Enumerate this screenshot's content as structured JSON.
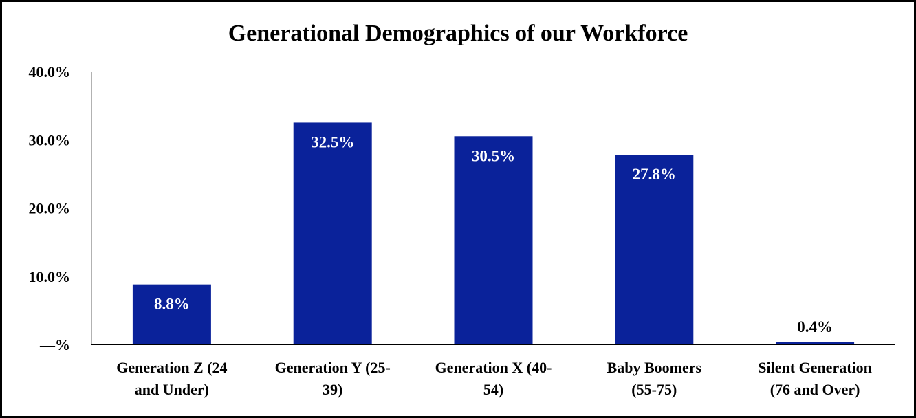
{
  "chart_data": {
    "type": "bar",
    "title": "Generational Demographics of our Workforce",
    "xlabel": "",
    "ylabel": "",
    "categories": [
      [
        "Generation Z (24",
        "and Under)"
      ],
      [
        "Generation Y (25-",
        "39)"
      ],
      [
        "Generation X (40-",
        "54)"
      ],
      [
        "Baby Boomers",
        "(55-75)"
      ],
      [
        "Silent Generation",
        "(76 and Over)"
      ]
    ],
    "values": [
      8.8,
      32.5,
      30.5,
      27.8,
      0.4
    ],
    "data_labels": [
      "8.8%",
      "32.5%",
      "30.5%",
      "27.8%",
      "0.4%"
    ],
    "ylim": [
      0,
      40
    ],
    "yticks": [
      0,
      10,
      20,
      30,
      40
    ],
    "ytick_labels": [
      "—%",
      "10.0%",
      "20.0%",
      "30.0%",
      "40.0%"
    ],
    "grid": false,
    "legend": "none",
    "colors": {
      "bar": "#0a229a",
      "label_inside": "#ffffff",
      "label_outside": "#000000",
      "axis": "#000000",
      "frame": "#000000"
    }
  }
}
